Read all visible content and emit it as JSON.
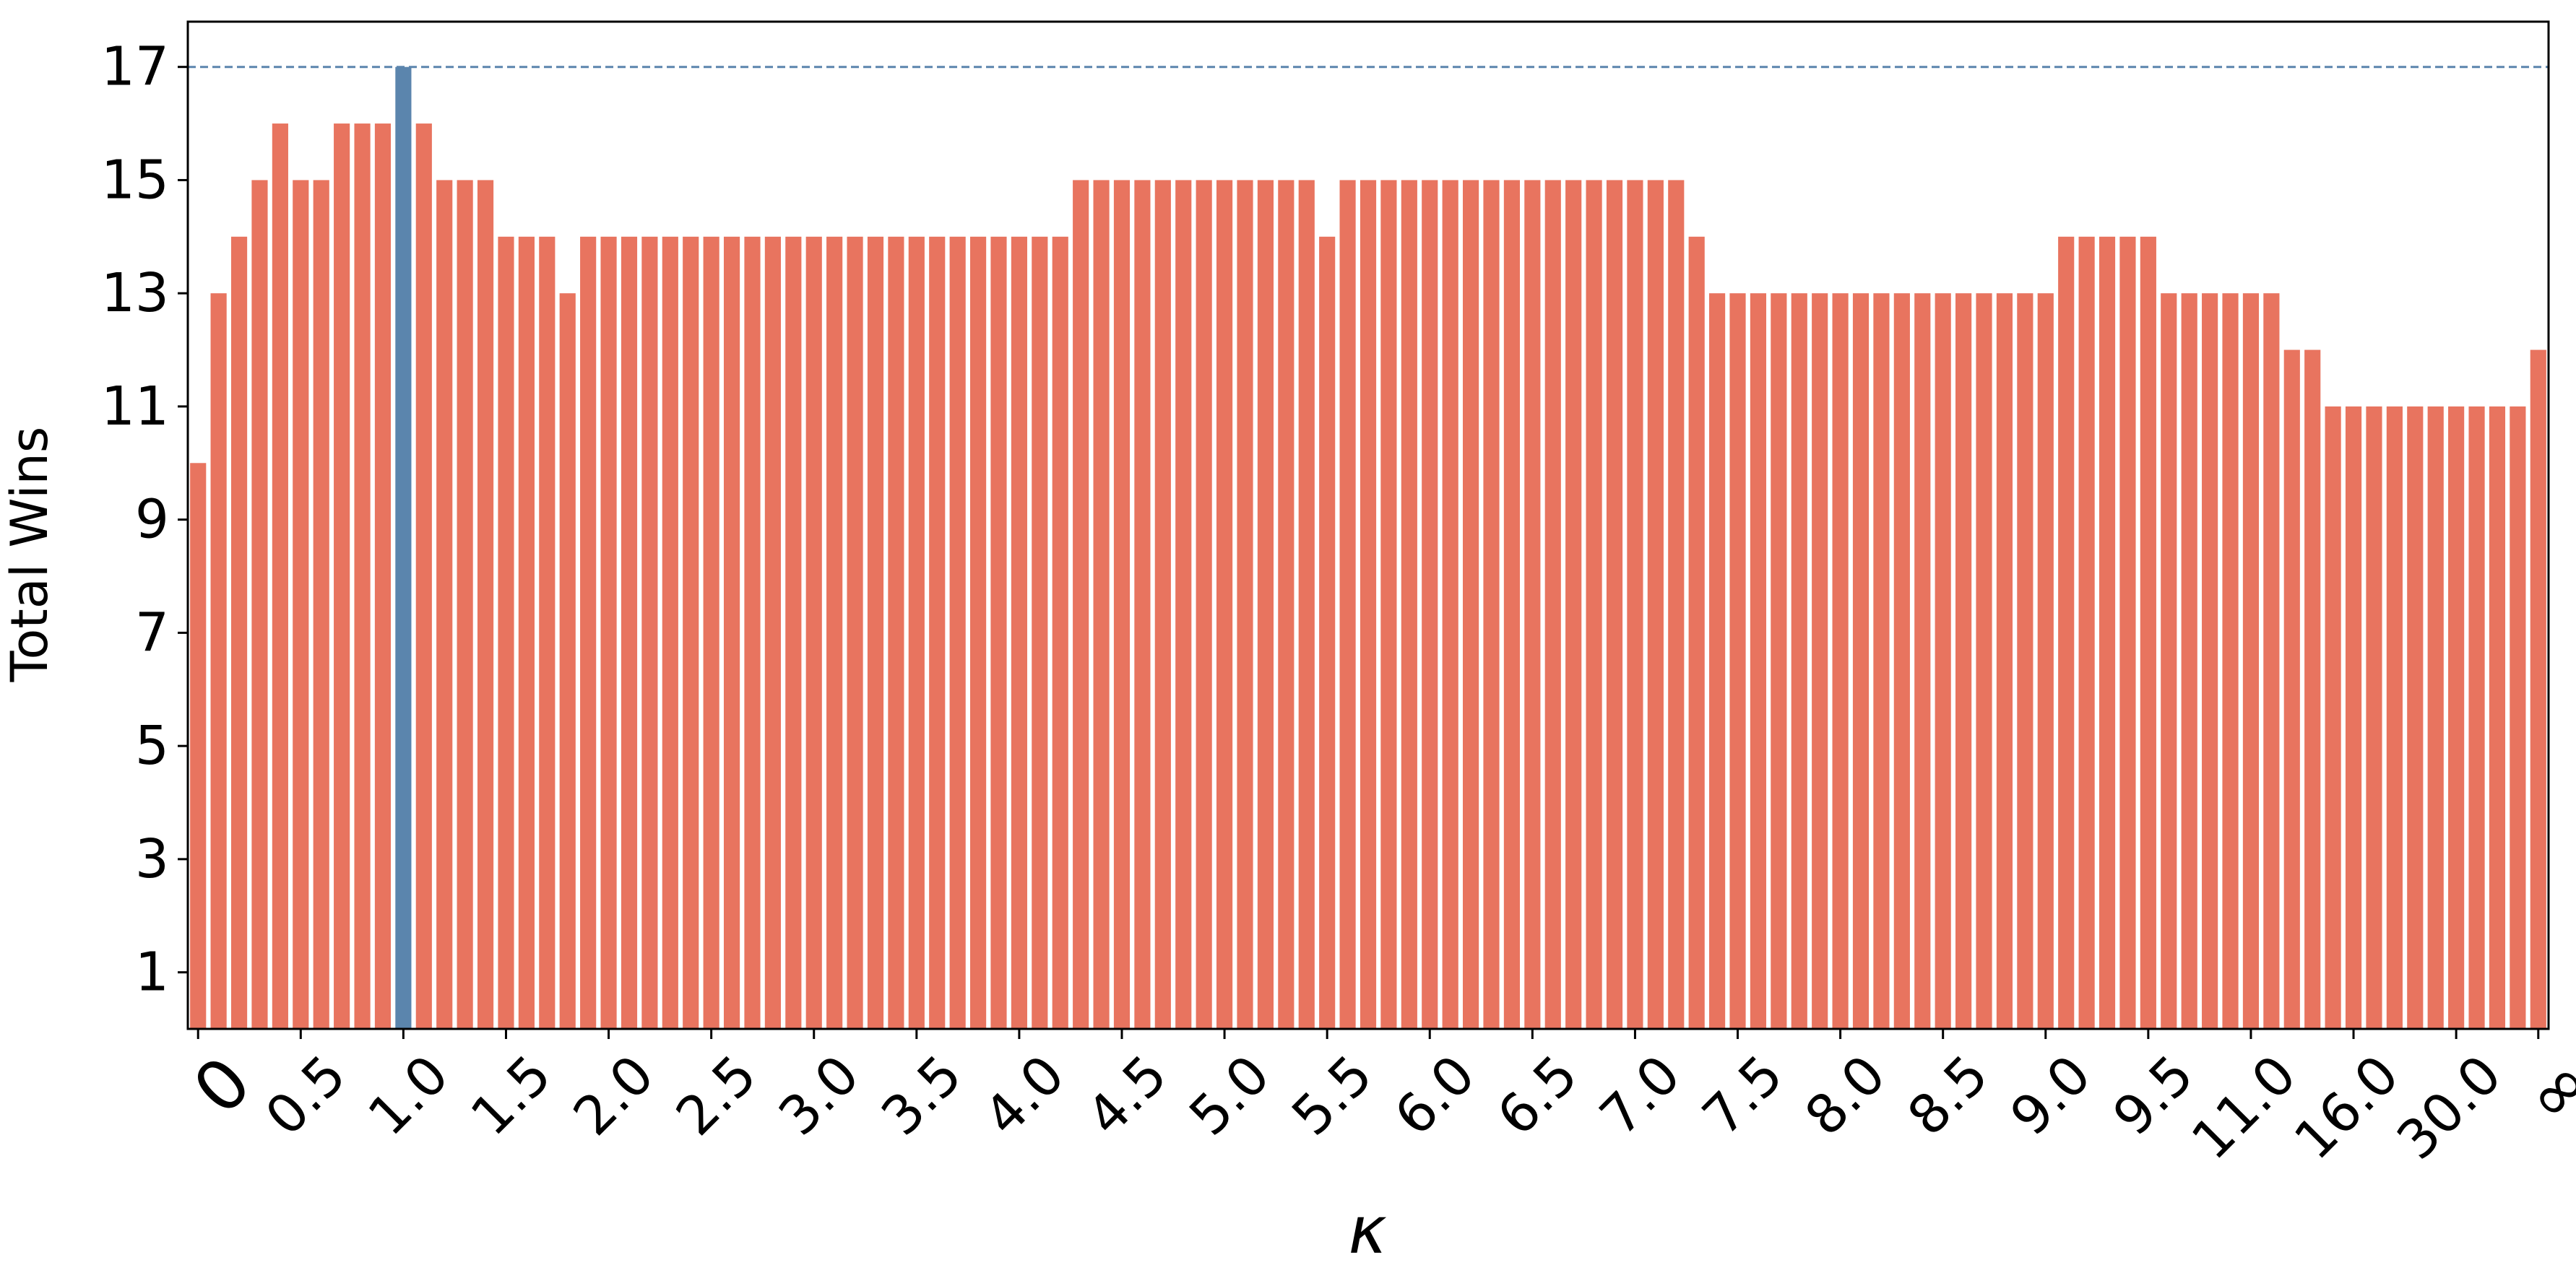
{
  "chart_data": {
    "type": "bar",
    "xlabel": "κ",
    "ylabel": "Total Wins",
    "ylim": [
      0,
      17.8
    ],
    "yticks": [
      1,
      3,
      5,
      7,
      9,
      11,
      13,
      15,
      17
    ],
    "xtick_labels": [
      "0",
      "0.5",
      "1.0",
      "1.5",
      "2.0",
      "2.5",
      "3.0",
      "3.5",
      "4.0",
      "4.5",
      "5.0",
      "5.5",
      "6.0",
      "6.5",
      "7.0",
      "7.5",
      "8.0",
      "8.5",
      "9.0",
      "9.5",
      "11.0",
      "16.0",
      "30.0",
      "∞"
    ],
    "xtick_bar_index": [
      0,
      5,
      10,
      15,
      20,
      25,
      30,
      35,
      40,
      45,
      50,
      55,
      60,
      65,
      70,
      75,
      80,
      85,
      90,
      95,
      100,
      105,
      110,
      114
    ],
    "values": [
      10,
      13,
      14,
      15,
      16,
      15,
      15,
      16,
      16,
      16,
      17,
      16,
      15,
      15,
      15,
      14,
      14,
      14,
      13,
      14,
      14,
      14,
      14,
      14,
      14,
      14,
      14,
      14,
      14,
      14,
      14,
      14,
      14,
      14,
      14,
      14,
      14,
      14,
      14,
      14,
      14,
      14,
      14,
      15,
      15,
      15,
      15,
      15,
      15,
      15,
      15,
      15,
      15,
      15,
      15,
      14,
      15,
      15,
      15,
      15,
      15,
      15,
      15,
      15,
      15,
      15,
      15,
      15,
      15,
      15,
      15,
      15,
      15,
      14,
      13,
      13,
      13,
      13,
      13,
      13,
      13,
      13,
      13,
      13,
      13,
      13,
      13,
      13,
      13,
      13,
      13,
      14,
      14,
      14,
      14,
      14,
      13,
      13,
      13,
      13,
      13,
      13,
      12,
      12,
      11,
      11,
      11,
      11,
      11,
      11,
      11,
      11,
      11,
      11,
      12
    ],
    "highlight_index": 10,
    "reference_line": 17,
    "bar_color": "#e8745f",
    "highlight_color": "#5b85ad",
    "reference_line_color": "#5b85ad",
    "grid": false
  }
}
